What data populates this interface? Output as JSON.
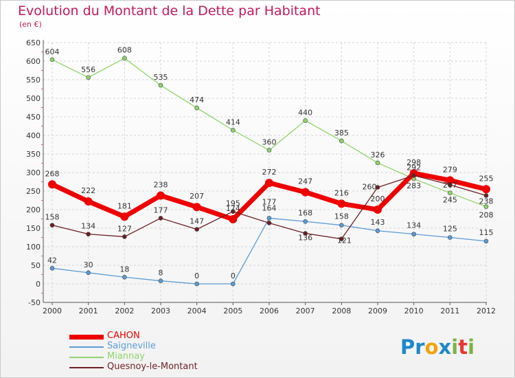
{
  "title": "Evolution du Montant de la Dette par Habitant",
  "subtitle": "(en €)",
  "brand": {
    "text": "Proxiti",
    "letters": [
      "P",
      "r",
      "o",
      "x",
      "i",
      "t",
      "i"
    ],
    "colors": [
      "#1e88c9",
      "#1e88c9",
      "#f0a30a",
      "#1e88c9",
      "#7cb342",
      "#e53935",
      "#7cb342"
    ]
  },
  "chart_data": {
    "type": "line",
    "x": [
      "2000",
      "2001",
      "2002",
      "2003",
      "2004",
      "2005",
      "2006",
      "2007",
      "2008",
      "2009",
      "2010",
      "2011",
      "2012"
    ],
    "ylim": [
      -50,
      650
    ],
    "yticks": [
      -50,
      0,
      50,
      100,
      150,
      200,
      250,
      300,
      350,
      400,
      450,
      500,
      550,
      600,
      650
    ],
    "grid": true,
    "legend_position": "bottom-left",
    "series": [
      {
        "name": "CAHON",
        "color": "#ee0000",
        "width": 7,
        "radius": 6,
        "values": [
          268,
          222,
          181,
          238,
          207,
          174,
          272,
          247,
          216,
          200,
          298,
          279,
          255
        ]
      },
      {
        "name": "Saigneville",
        "color": "#5b9bd5",
        "width": 1.3,
        "radius": 3,
        "values": [
          42,
          30,
          18,
          8,
          0,
          0,
          177,
          168,
          158,
          143,
          134,
          125,
          115
        ]
      },
      {
        "name": "Miannay",
        "color": "#8fd46b",
        "width": 1.3,
        "radius": 3,
        "values": [
          604,
          556,
          608,
          535,
          474,
          414,
          360,
          440,
          385,
          326,
          283,
          245,
          208
        ]
      },
      {
        "name": "Quesnoy-le-Montant",
        "color": "#6d1f24",
        "width": 1.3,
        "radius": 3,
        "values": [
          158,
          134,
          127,
          177,
          147,
          195,
          164,
          136,
          121,
          260,
          292,
          267,
          238
        ]
      }
    ],
    "labels_shown": {
      "CAHON": [
        "268",
        "222",
        "181",
        "238",
        "207",
        "174",
        "272",
        "247",
        "216",
        "200",
        "298",
        "279",
        "255"
      ],
      "Saigneville": [
        "42",
        "30",
        "18",
        "8",
        "0",
        "0",
        "177",
        "168",
        "158",
        "143",
        "134",
        "125",
        "115"
      ],
      "Miannay": [
        "604",
        "556",
        "608",
        "535",
        "474",
        "414",
        "360",
        "440",
        "385",
        "326",
        "283",
        "245",
        "208"
      ],
      "Quesnoy-le-Montant": [
        "158",
        "134",
        "127",
        "177",
        "147",
        "195",
        "164",
        "136",
        "121",
        "260",
        "292",
        "267",
        "238"
      ]
    }
  }
}
